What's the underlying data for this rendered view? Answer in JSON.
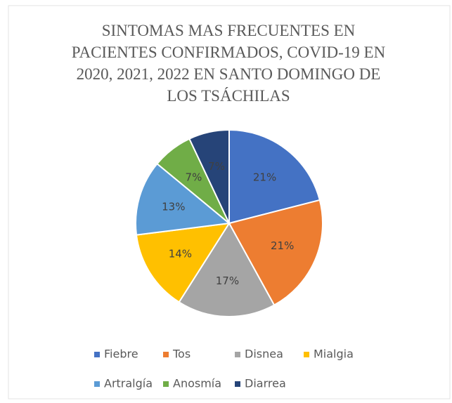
{
  "chart_data": {
    "type": "pie",
    "title": "SINTOMAS MAS FRECUENTES EN PACIENTES CONFIRMADOS, COVID-19 EN 2020, 2021, 2022 EN SANTO DOMINGO DE LOS TSÁCHILAS",
    "categories": [
      "Fiebre",
      "Tos",
      "Disnea",
      "Mialgia",
      "Artralgía",
      "Anosmía",
      "Diarrea"
    ],
    "values": [
      21,
      21,
      17,
      14,
      13,
      7,
      7
    ],
    "value_labels": [
      "21%",
      "21%",
      "17%",
      "14%",
      "13%",
      "7%",
      "7%"
    ],
    "colors": [
      "#4472c4",
      "#ed7d31",
      "#a5a5a5",
      "#ffc000",
      "#5b9bd5",
      "#70ad47",
      "#264478"
    ],
    "legend": "bottom"
  }
}
